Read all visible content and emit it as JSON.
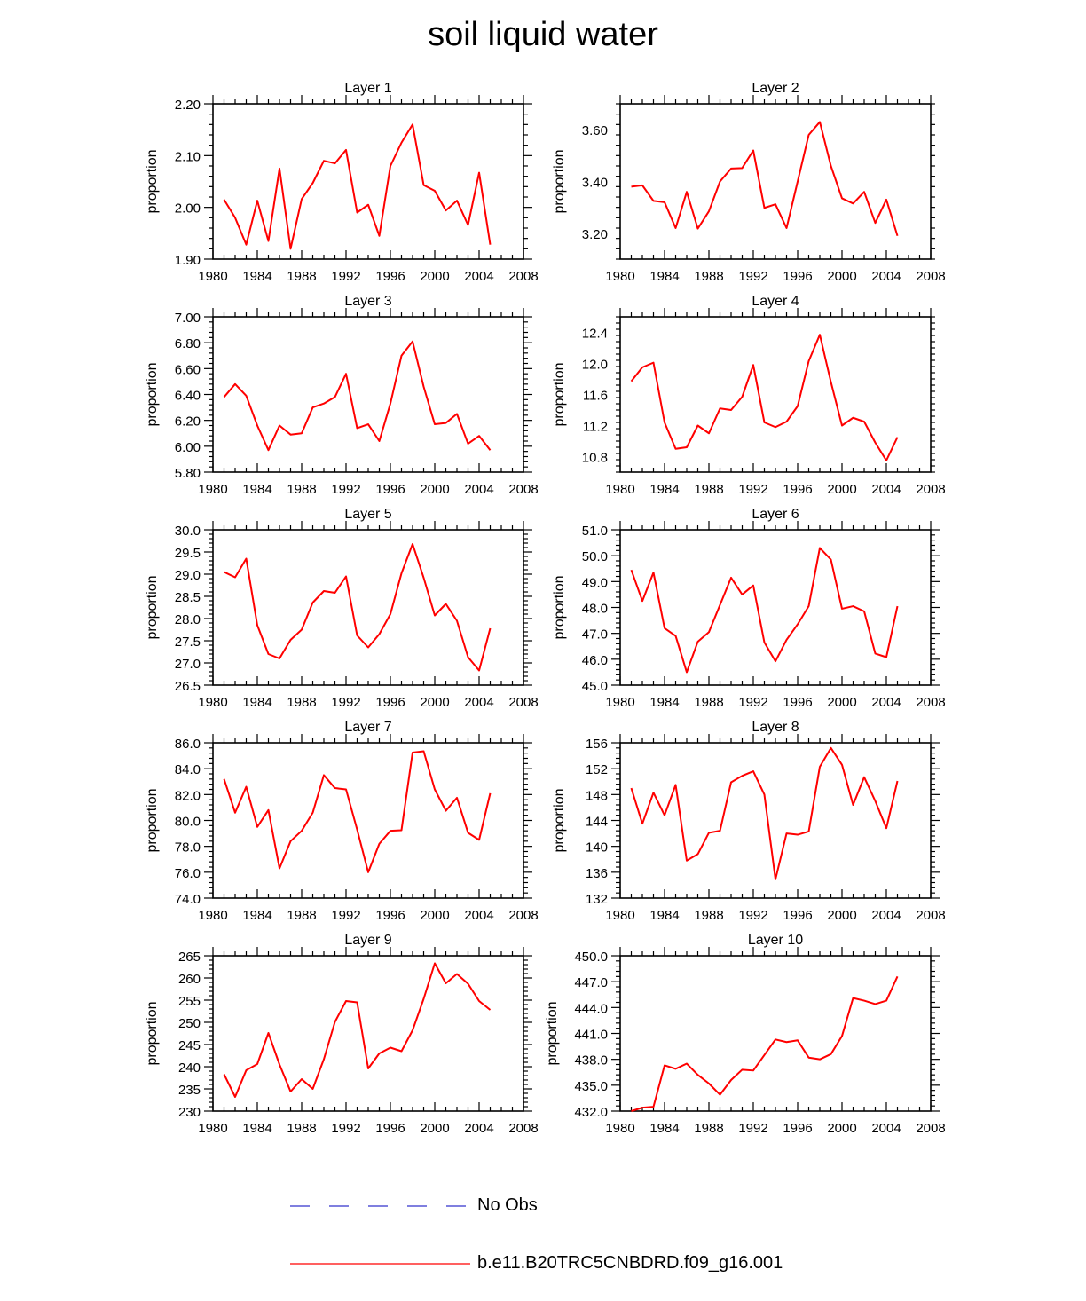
{
  "title": "soil liquid water",
  "colors": {
    "model": "#ff0000",
    "obs": "#3333cc",
    "axis": "#000000"
  },
  "legend": {
    "items": [
      {
        "label": "No Obs",
        "style": "dashed",
        "color": "#3333cc"
      },
      {
        "label": "b.e11.B20TRC5CNBDRD.f09_g16.001",
        "style": "solid",
        "color": "#ff0000"
      }
    ]
  },
  "chart_data": [
    {
      "type": "line",
      "title": "Layer 1",
      "ylabel": "proportion",
      "xlim": [
        1980,
        2008
      ],
      "xticks": [
        1980,
        1984,
        1988,
        1992,
        1996,
        2000,
        2004,
        2008
      ],
      "ylim": [
        1.9,
        2.2
      ],
      "yticks": [
        "1.90",
        "2.00",
        "2.10",
        "2.20"
      ],
      "x": [
        1981,
        1982,
        1983,
        1984,
        1985,
        1986,
        1987,
        1988,
        1989,
        1990,
        1991,
        1992,
        1993,
        1994,
        1995,
        1996,
        1997,
        1998,
        1999,
        2000,
        2001,
        2002,
        2003,
        2004,
        2005
      ],
      "series": [
        {
          "name": "b.e11.B20TRC5CNBDRD.f09_g16.001",
          "values": [
            2.015,
            1.98,
            1.928,
            2.013,
            1.935,
            2.075,
            1.92,
            2.016,
            2.047,
            2.09,
            2.085,
            2.111,
            1.99,
            2.005,
            1.945,
            2.08,
            2.125,
            2.16,
            2.043,
            2.032,
            1.994,
            2.013,
            1.966,
            2.067,
            1.928
          ]
        }
      ]
    },
    {
      "type": "line",
      "title": "Layer 2",
      "ylabel": "proportion",
      "xlim": [
        1980,
        2008
      ],
      "xticks": [
        1980,
        1984,
        1988,
        1992,
        1996,
        2000,
        2004,
        2008
      ],
      "ylim": [
        3.1,
        3.7
      ],
      "yticks": [
        "3.20",
        "3.40",
        "3.60"
      ],
      "x": [
        1981,
        1982,
        1983,
        1984,
        1985,
        1986,
        1987,
        1988,
        1989,
        1990,
        1991,
        1992,
        1993,
        1994,
        1995,
        1996,
        1997,
        1998,
        1999,
        2000,
        2001,
        2002,
        2003,
        2004,
        2005
      ],
      "series": [
        {
          "name": "b.e11.B20TRC5CNBDRD.f09_g16.001",
          "values": [
            3.38,
            3.385,
            3.325,
            3.32,
            3.22,
            3.36,
            3.218,
            3.285,
            3.4,
            3.45,
            3.452,
            3.52,
            3.298,
            3.312,
            3.22,
            3.4,
            3.58,
            3.63,
            3.46,
            3.335,
            3.315,
            3.36,
            3.24,
            3.33,
            3.19
          ]
        }
      ]
    },
    {
      "type": "line",
      "title": "Layer 3",
      "ylabel": "proportion",
      "xlim": [
        1980,
        2008
      ],
      "xticks": [
        1980,
        1984,
        1988,
        1992,
        1996,
        2000,
        2004,
        2008
      ],
      "ylim": [
        5.8,
        7.0
      ],
      "yticks": [
        "5.80",
        "6.00",
        "6.20",
        "6.40",
        "6.60",
        "6.80",
        "7.00"
      ],
      "x": [
        1981,
        1982,
        1983,
        1984,
        1985,
        1986,
        1987,
        1988,
        1989,
        1990,
        1991,
        1992,
        1993,
        1994,
        1995,
        1996,
        1997,
        1998,
        1999,
        2000,
        2001,
        2002,
        2003,
        2004,
        2005
      ],
      "series": [
        {
          "name": "b.e11.B20TRC5CNBDRD.f09_g16.001",
          "values": [
            6.38,
            6.48,
            6.39,
            6.16,
            5.97,
            6.16,
            6.09,
            6.1,
            6.3,
            6.33,
            6.38,
            6.56,
            6.14,
            6.17,
            6.04,
            6.33,
            6.7,
            6.81,
            6.46,
            6.17,
            6.18,
            6.25,
            6.02,
            6.08,
            5.97
          ]
        }
      ]
    },
    {
      "type": "line",
      "title": "Layer 4",
      "ylabel": "proportion",
      "xlim": [
        1980,
        2008
      ],
      "xticks": [
        1980,
        1984,
        1988,
        1992,
        1996,
        2000,
        2004,
        2008
      ],
      "ylim": [
        10.6,
        12.6
      ],
      "yticks": [
        "10.8",
        "11.2",
        "11.6",
        "12.0",
        "12.4"
      ],
      "x": [
        1981,
        1982,
        1983,
        1984,
        1985,
        1986,
        1987,
        1988,
        1989,
        1990,
        1991,
        1992,
        1993,
        1994,
        1995,
        1996,
        1997,
        1998,
        1999,
        2000,
        2001,
        2002,
        2003,
        2004,
        2005
      ],
      "series": [
        {
          "name": "b.e11.B20TRC5CNBDRD.f09_g16.001",
          "values": [
            11.77,
            11.95,
            12.01,
            11.24,
            10.9,
            10.92,
            11.2,
            11.1,
            11.42,
            11.4,
            11.57,
            11.98,
            11.24,
            11.18,
            11.25,
            11.45,
            12.03,
            12.37,
            11.76,
            11.2,
            11.3,
            11.25,
            10.98,
            10.75,
            11.05
          ]
        }
      ]
    },
    {
      "type": "line",
      "title": "Layer 5",
      "ylabel": "proportion",
      "xlim": [
        1980,
        2008
      ],
      "xticks": [
        1980,
        1984,
        1988,
        1992,
        1996,
        2000,
        2004,
        2008
      ],
      "ylim": [
        26.5,
        30.0
      ],
      "yticks": [
        "26.5",
        "27.0",
        "27.5",
        "28.0",
        "28.5",
        "29.0",
        "29.5",
        "30.0"
      ],
      "x": [
        1981,
        1982,
        1983,
        1984,
        1985,
        1986,
        1987,
        1988,
        1989,
        1990,
        1991,
        1992,
        1993,
        1994,
        1995,
        1996,
        1997,
        1998,
        1999,
        2000,
        2001,
        2002,
        2003,
        2004,
        2005
      ],
      "series": [
        {
          "name": "b.e11.B20TRC5CNBDRD.f09_g16.001",
          "values": [
            29.05,
            28.93,
            29.35,
            27.85,
            27.2,
            27.1,
            27.52,
            27.75,
            28.36,
            28.62,
            28.58,
            28.95,
            27.62,
            27.35,
            27.65,
            28.1,
            29.02,
            29.68,
            28.92,
            28.07,
            28.33,
            27.95,
            27.13,
            26.83,
            27.78
          ]
        }
      ]
    },
    {
      "type": "line",
      "title": "Layer 6",
      "ylabel": "proportion",
      "xlim": [
        1980,
        2008
      ],
      "xticks": [
        1980,
        1984,
        1988,
        1992,
        1996,
        2000,
        2004,
        2008
      ],
      "ylim": [
        45.0,
        51.0
      ],
      "yticks": [
        "45.0",
        "46.0",
        "47.0",
        "48.0",
        "49.0",
        "50.0",
        "51.0"
      ],
      "x": [
        1981,
        1982,
        1983,
        1984,
        1985,
        1986,
        1987,
        1988,
        1989,
        1990,
        1991,
        1992,
        1993,
        1994,
        1995,
        1996,
        1997,
        1998,
        1999,
        2000,
        2001,
        2002,
        2003,
        2004,
        2005
      ],
      "series": [
        {
          "name": "b.e11.B20TRC5CNBDRD.f09_g16.001",
          "values": [
            49.45,
            48.25,
            49.35,
            47.2,
            46.9,
            45.5,
            46.68,
            47.05,
            48.1,
            49.15,
            48.5,
            48.85,
            46.65,
            45.92,
            46.75,
            47.35,
            48.05,
            50.3,
            49.85,
            47.95,
            48.05,
            47.85,
            46.22,
            46.08,
            48.05
          ]
        }
      ]
    },
    {
      "type": "line",
      "title": "Layer 7",
      "ylabel": "proportion",
      "xlim": [
        1980,
        2008
      ],
      "xticks": [
        1980,
        1984,
        1988,
        1992,
        1996,
        2000,
        2004,
        2008
      ],
      "ylim": [
        74.0,
        86.0
      ],
      "yticks": [
        "74.0",
        "76.0",
        "78.0",
        "80.0",
        "82.0",
        "84.0",
        "86.0"
      ],
      "x": [
        1981,
        1982,
        1983,
        1984,
        1985,
        1986,
        1987,
        1988,
        1989,
        1990,
        1991,
        1992,
        1993,
        1994,
        1995,
        1996,
        1997,
        1998,
        1999,
        2000,
        2001,
        2002,
        2003,
        2004,
        2005
      ],
      "series": [
        {
          "name": "b.e11.B20TRC5CNBDRD.f09_g16.001",
          "values": [
            83.2,
            80.6,
            82.6,
            79.5,
            80.8,
            76.3,
            78.4,
            79.2,
            80.6,
            83.5,
            82.5,
            82.4,
            79.3,
            76.0,
            78.2,
            79.2,
            79.25,
            85.25,
            85.35,
            82.4,
            80.75,
            81.75,
            79.05,
            78.5,
            82.1
          ]
        }
      ]
    },
    {
      "type": "line",
      "title": "Layer 8",
      "ylabel": "proportion",
      "xlim": [
        1980,
        2008
      ],
      "xticks": [
        1980,
        1984,
        1988,
        1992,
        1996,
        2000,
        2004,
        2008
      ],
      "ylim": [
        132,
        156
      ],
      "yticks": [
        "132",
        "136",
        "140",
        "144",
        "148",
        "152",
        "156"
      ],
      "x": [
        1981,
        1982,
        1983,
        1984,
        1985,
        1986,
        1987,
        1988,
        1989,
        1990,
        1991,
        1992,
        1993,
        1994,
        1995,
        1996,
        1997,
        1998,
        1999,
        2000,
        2001,
        2002,
        2003,
        2004,
        2005
      ],
      "series": [
        {
          "name": "b.e11.B20TRC5CNBDRD.f09_g16.001",
          "values": [
            149.0,
            143.5,
            148.3,
            144.8,
            149.5,
            137.8,
            138.8,
            142.1,
            142.4,
            149.9,
            150.9,
            151.6,
            148.0,
            134.9,
            142.0,
            141.8,
            142.3,
            152.3,
            155.2,
            152.6,
            146.4,
            150.7,
            147.0,
            142.8,
            150.1
          ]
        }
      ]
    },
    {
      "type": "line",
      "title": "Layer 9",
      "ylabel": "proportion",
      "xlim": [
        1980,
        2008
      ],
      "xticks": [
        1980,
        1984,
        1988,
        1992,
        1996,
        2000,
        2004,
        2008
      ],
      "ylim": [
        230,
        265
      ],
      "yticks": [
        "230",
        "235",
        "240",
        "245",
        "250",
        "255",
        "260",
        "265"
      ],
      "x": [
        1981,
        1982,
        1983,
        1984,
        1985,
        1986,
        1987,
        1988,
        1989,
        1990,
        1991,
        1992,
        1993,
        1994,
        1995,
        1996,
        1997,
        1998,
        1999,
        2000,
        2001,
        2002,
        2003,
        2004,
        2005
      ],
      "series": [
        {
          "name": "b.e11.B20TRC5CNBDRD.f09_g16.001",
          "values": [
            238.3,
            233.2,
            239.2,
            240.6,
            247.6,
            240.5,
            234.4,
            237.2,
            235.0,
            241.7,
            250.1,
            254.8,
            254.5,
            239.6,
            243.0,
            244.3,
            243.5,
            248.2,
            255.3,
            263.3,
            258.8,
            260.9,
            258.7,
            254.8,
            252.8
          ]
        }
      ]
    },
    {
      "type": "line",
      "title": "Layer 10",
      "ylabel": "proportion",
      "xlim": [
        1980,
        2008
      ],
      "xticks": [
        1980,
        1984,
        1988,
        1992,
        1996,
        2000,
        2004,
        2008
      ],
      "ylim": [
        432.0,
        450.0
      ],
      "yticks": [
        "432.0",
        "435.0",
        "438.0",
        "441.0",
        "444.0",
        "447.0",
        "450.0"
      ],
      "x": [
        1981,
        1982,
        1983,
        1984,
        1985,
        1986,
        1987,
        1988,
        1989,
        1990,
        1991,
        1992,
        1993,
        1994,
        1995,
        1996,
        1997,
        1998,
        1999,
        2000,
        2001,
        2002,
        2003,
        2004,
        2005
      ],
      "series": [
        {
          "name": "b.e11.B20TRC5CNBDRD.f09_g16.001",
          "values": [
            432.0,
            432.4,
            432.5,
            437.3,
            436.9,
            437.5,
            436.2,
            435.2,
            433.9,
            435.6,
            436.8,
            436.7,
            438.5,
            440.3,
            440.0,
            440.2,
            438.2,
            438.0,
            438.6,
            440.7,
            445.1,
            444.8,
            444.4,
            444.8,
            447.6
          ]
        }
      ]
    }
  ]
}
